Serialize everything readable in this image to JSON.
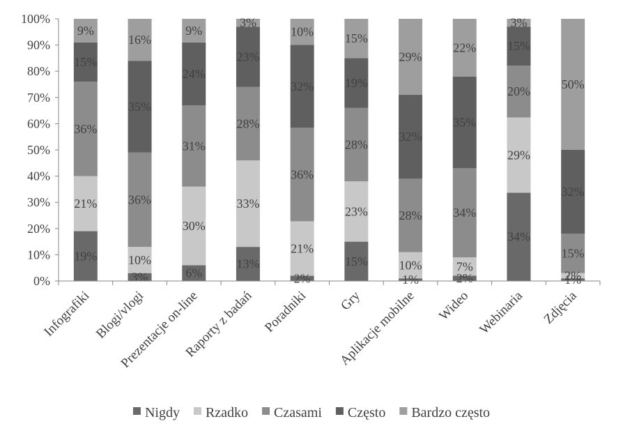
{
  "chart_data": {
    "type": "bar",
    "stacked": true,
    "categories": [
      "Infografiki",
      "Blogi/vlogi",
      "Prezentacje on-line",
      "Raporty z badań",
      "Poradniki",
      "Gry",
      "Aplikacje mobilne",
      "Wideo",
      "Webinaria",
      "Zdjęcia"
    ],
    "series": [
      {
        "name": "Nigdy",
        "color": "#696969",
        "values": [
          19,
          3,
          6,
          13,
          2,
          15,
          1,
          2,
          34,
          1
        ]
      },
      {
        "name": "Rzadko",
        "color": "#c8c8c8",
        "values": [
          21,
          10,
          30,
          33,
          21,
          23,
          10,
          7,
          29,
          2
        ]
      },
      {
        "name": "Czasami",
        "color": "#8c8c8c",
        "values": [
          36,
          36,
          31,
          28,
          36,
          28,
          28,
          34,
          20,
          15
        ]
      },
      {
        "name": "Często",
        "color": "#5f5f5f",
        "values": [
          15,
          35,
          24,
          23,
          32,
          19,
          32,
          35,
          15,
          32
        ]
      },
      {
        "name": "Bardzo często",
        "color": "#9e9e9e",
        "values": [
          9,
          16,
          9,
          3,
          10,
          15,
          29,
          22,
          3,
          50
        ]
      }
    ],
    "data_labels": [
      [
        "19%",
        "21%",
        "36%",
        "15%",
        "9%"
      ],
      [
        "3%",
        "10%",
        "36%",
        "35%",
        "16%"
      ],
      [
        "6%",
        "30%",
        "31%",
        "24%",
        "9%"
      ],
      [
        "13%",
        "33%",
        "28%",
        "23%",
        "3%"
      ],
      [
        "2%",
        "21%",
        "36%",
        "32%",
        "10%"
      ],
      [
        "15%",
        "23%",
        "28%",
        "19%",
        "15%"
      ],
      [
        "1%",
        "10%",
        "28%",
        "32%",
        "29%"
      ],
      [
        "2%",
        "7%",
        "34%",
        "35%",
        "22%"
      ],
      [
        "34%",
        "29%",
        "20%",
        "15%",
        "3%"
      ],
      [
        "1%",
        "2%",
        "15%",
        "32%",
        "50%"
      ]
    ],
    "y_ticks": [
      "0%",
      "10%",
      "20%",
      "30%",
      "40%",
      "50%",
      "60%",
      "70%",
      "80%",
      "90%",
      "100%"
    ],
    "ylim": [
      0,
      100
    ],
    "title": "",
    "xlabel": "",
    "ylabel": "",
    "grid": false,
    "legend_position": "bottom"
  }
}
